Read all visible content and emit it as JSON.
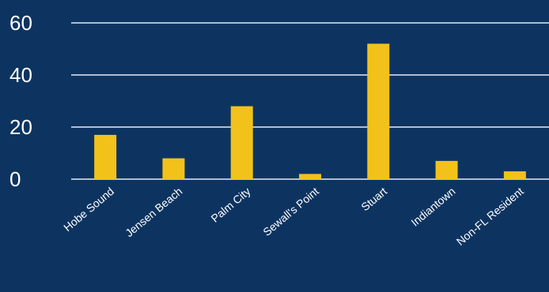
{
  "chart_data": {
    "type": "bar",
    "title": "",
    "xlabel": "",
    "ylabel": "",
    "categories": [
      "Hobe Sound",
      "Jensen Beach",
      "Palm City",
      "Sewall's Point",
      "Stuart",
      "Indiantown",
      "Non-FL Resident"
    ],
    "values": [
      17,
      8,
      28,
      2,
      52,
      7,
      3
    ],
    "ylim": [
      0,
      60
    ],
    "yticks": [
      "0",
      "20",
      "40",
      "60"
    ],
    "grid": true,
    "legend": "none",
    "colors": {
      "background": "#0d3461",
      "bar": "#f2c21b",
      "grid": "#e6ebf2",
      "text": "#ffffff"
    }
  }
}
